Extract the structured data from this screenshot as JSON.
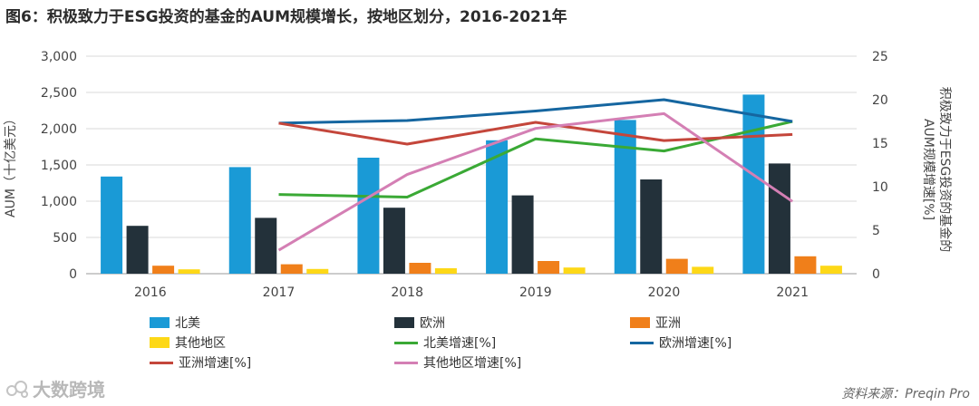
{
  "title": "图6：积极致力于ESG投资的基金的AUM规模增长，按地区划分，2016-2021年",
  "source": "资料来源：Preqin Pro",
  "watermark": "大数跨境",
  "colors": {
    "north_america": "#1a9ad6",
    "europe": "#23313a",
    "asia": "#f07f1a",
    "other": "#fdd817",
    "north_america_growth": "#3aa935",
    "europe_growth": "#1566a0",
    "asia_growth": "#c4463b",
    "other_growth": "#d47fb4"
  },
  "chart_data": {
    "type": "bar",
    "title": "图6：积极致力于ESG投资的基金的AUM规模增长，按地区划分，2016-2021年",
    "categories": [
      "2016",
      "2017",
      "2018",
      "2019",
      "2020",
      "2021"
    ],
    "ylabel": "AUM（十亿美元）",
    "y2label": "积极致力于ESG投资的基金的AUM规模增速[%]",
    "ylim": [
      0,
      3000
    ],
    "y2lim": [
      0,
      25
    ],
    "y_ticks": [
      "0",
      "500",
      "1,000",
      "1,500",
      "2,000",
      "2,500",
      "3,000"
    ],
    "y2_ticks": [
      "0",
      "5",
      "10",
      "15",
      "20",
      "25"
    ],
    "series": [
      {
        "name": "北美",
        "kind": "bar",
        "color_key": "north_america",
        "values": [
          1340,
          1470,
          1600,
          1840,
          2120,
          2470
        ]
      },
      {
        "name": "欧洲",
        "kind": "bar",
        "color_key": "europe",
        "values": [
          660,
          770,
          910,
          1080,
          1300,
          1520
        ]
      },
      {
        "name": "亚洲",
        "kind": "bar",
        "color_key": "asia",
        "values": [
          110,
          130,
          150,
          175,
          205,
          240
        ]
      },
      {
        "name": "其他地区",
        "kind": "bar",
        "color_key": "other",
        "values": [
          60,
          65,
          75,
          85,
          95,
          110
        ]
      },
      {
        "name": "北美增速[%]",
        "kind": "line",
        "color_key": "north_america_growth",
        "values": [
          null,
          9.1,
          8.8,
          15.5,
          14.1,
          17.5
        ]
      },
      {
        "name": "欧洲增速[%]",
        "kind": "line",
        "color_key": "europe_growth",
        "values": [
          null,
          17.3,
          17.6,
          18.7,
          20.0,
          17.5
        ]
      },
      {
        "name": "亚洲增速[%]",
        "kind": "line",
        "color_key": "asia_growth",
        "values": [
          null,
          17.3,
          14.9,
          17.4,
          15.3,
          16.0
        ]
      },
      {
        "name": "其他地区增速[%]",
        "kind": "line",
        "color_key": "other_growth",
        "values": [
          null,
          2.7,
          11.4,
          16.7,
          18.4,
          8.3
        ]
      }
    ]
  }
}
